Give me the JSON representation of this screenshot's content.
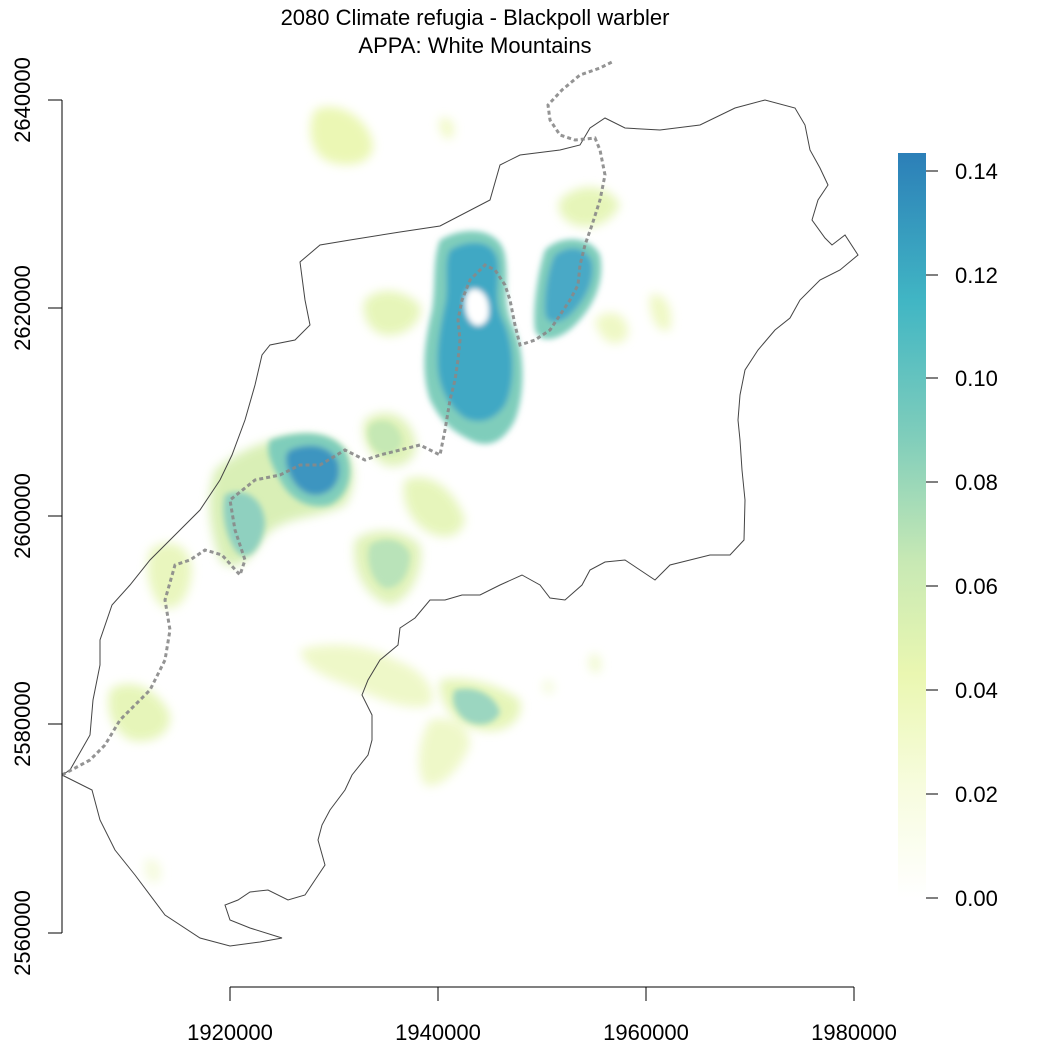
{
  "title": "2080 Climate refugia - Blackpoll warbler",
  "subtitle": "APPA: White Mountains",
  "map": {
    "x_axis": {
      "ticks": [
        "1920000",
        "1940000",
        "1960000",
        "1980000"
      ]
    },
    "y_axis": {
      "ticks": [
        "2560000",
        "2580000",
        "2600000",
        "2620000",
        "2640000"
      ]
    },
    "legend": {
      "ticks": [
        "0.00",
        "0.02",
        "0.04",
        "0.06",
        "0.08",
        "0.10",
        "0.12",
        "0.14"
      ],
      "colors": [
        "#ffffff",
        "#f7fcde",
        "#eaf7b1",
        "#c8e9b4",
        "#7fcdbb",
        "#41b6c4",
        "#2c7fb8"
      ]
    }
  }
}
